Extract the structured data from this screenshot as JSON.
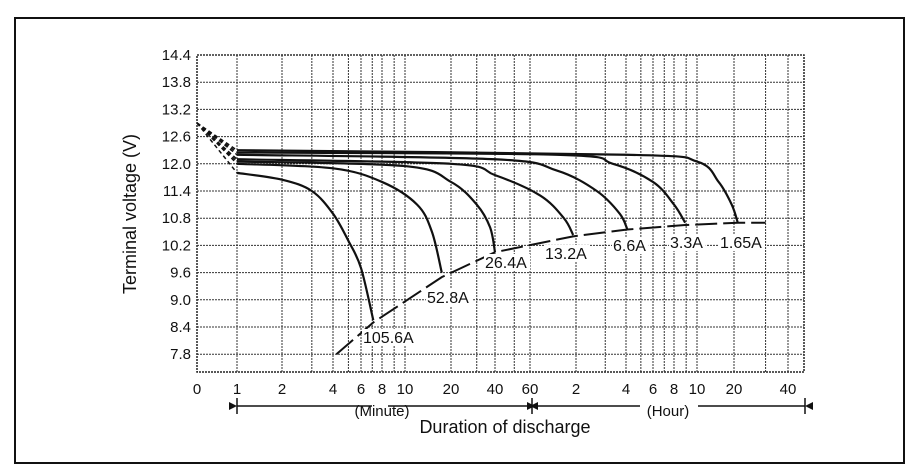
{
  "chart_data": {
    "type": "line",
    "xlabel": "Duration of discharge",
    "ylabel": "Terminal voltage (V)",
    "x_scale": "log (minutes, then hours)",
    "x_annotations": {
      "minute": "(Minute)",
      "hour": "(Hour)"
    },
    "x_ticks": [
      {
        "label": "0",
        "minutes": 0
      },
      {
        "label": "1",
        "minutes": 1
      },
      {
        "label": "2",
        "minutes": 2
      },
      {
        "label": "4",
        "minutes": 4
      },
      {
        "label": "6",
        "minutes": 6
      },
      {
        "label": "8",
        "minutes": 8
      },
      {
        "label": "10",
        "minutes": 10
      },
      {
        "label": "20",
        "minutes": 20
      },
      {
        "label": "40",
        "minutes": 40
      },
      {
        "label": "60",
        "minutes": 60
      },
      {
        "label": "2",
        "minutes": 120
      },
      {
        "label": "4",
        "minutes": 240
      },
      {
        "label": "6",
        "minutes": 360
      },
      {
        "label": "8",
        "minutes": 480
      },
      {
        "label": "10",
        "minutes": 600
      },
      {
        "label": "20",
        "minutes": 1200
      },
      {
        "label": "40",
        "minutes": 2400
      }
    ],
    "y_ticks": [
      "14.4",
      "13.8",
      "13.2",
      "12.6",
      "12.0",
      "11.4",
      "10.8",
      "10.2",
      "9.6",
      "9.0",
      "8.4",
      "7.8"
    ],
    "ylim": [
      7.2,
      14.4
    ],
    "grid": true,
    "series": [
      {
        "name": "105.6A",
        "points": [
          [
            1,
            11.8
          ],
          [
            2,
            11.65
          ],
          [
            3,
            11.4
          ],
          [
            4,
            10.9
          ],
          [
            5,
            10.3
          ],
          [
            6,
            9.7
          ],
          [
            7.1,
            8.55
          ]
        ]
      },
      {
        "name": "52.8A",
        "points": [
          [
            1,
            12.0
          ],
          [
            4,
            11.9
          ],
          [
            8,
            11.6
          ],
          [
            12,
            11.1
          ],
          [
            15,
            10.5
          ],
          [
            17.4,
            9.6
          ]
        ]
      },
      {
        "name": "26.4A",
        "points": [
          [
            1,
            12.05
          ],
          [
            10,
            11.95
          ],
          [
            20,
            11.6
          ],
          [
            30,
            11.1
          ],
          [
            37,
            10.6
          ],
          [
            40,
            10.05
          ]
        ]
      },
      {
        "name": "13.2A",
        "points": [
          [
            1,
            12.1
          ],
          [
            20,
            12.0
          ],
          [
            40,
            11.75
          ],
          [
            70,
            11.3
          ],
          [
            100,
            10.8
          ],
          [
            115,
            10.43
          ]
        ]
      },
      {
        "name": "6.6A",
        "points": [
          [
            1,
            12.2
          ],
          [
            40,
            12.1
          ],
          [
            90,
            11.85
          ],
          [
            160,
            11.4
          ],
          [
            220,
            10.9
          ],
          [
            245,
            10.55
          ]
        ]
      },
      {
        "name": "3.3A",
        "points": [
          [
            1,
            12.25
          ],
          [
            90,
            12.2
          ],
          [
            200,
            12.0
          ],
          [
            360,
            11.6
          ],
          [
            480,
            11.1
          ],
          [
            535,
            10.7
          ]
        ]
      },
      {
        "name": "1.65A",
        "points": [
          [
            1,
            12.3
          ],
          [
            240,
            12.2
          ],
          [
            600,
            12.05
          ],
          [
            900,
            11.6
          ],
          [
            1150,
            11.1
          ],
          [
            1260,
            10.7
          ]
        ]
      }
    ],
    "initial_voltage": 12.9,
    "final_voltage_line": [
      [
        4.2,
        7.8
      ],
      [
        7.1,
        8.5
      ],
      [
        17.4,
        9.5
      ],
      [
        40,
        10.05
      ],
      [
        115,
        10.4
      ],
      [
        245,
        10.55
      ],
      [
        535,
        10.65
      ],
      [
        1260,
        10.7
      ],
      [
        1800,
        10.7
      ]
    ],
    "colors": {
      "ink": "#111111",
      "grid": "#333333",
      "background": "#ffffff"
    }
  }
}
